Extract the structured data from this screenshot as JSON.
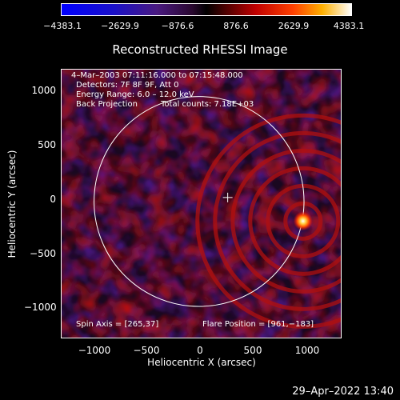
{
  "colorbar": {
    "ticks": [
      "−4383.1",
      "−2629.9",
      "−876.6",
      "876.6",
      "2629.9",
      "4383.1"
    ],
    "min": -4383.1,
    "max": 4383.1
  },
  "title": "Reconstructed RHESSI Image",
  "info": {
    "time_range": "4–Mar–2003 07:11:16.000 to 07:15:48.000",
    "detectors": "Detectors: 7F 8F 9F, Att 0",
    "energy": "Energy Range: 6.0 – 12.0 keV",
    "method": "Back Projection",
    "counts": "Total counts: 7.18E+03"
  },
  "axes": {
    "xlabel": "Heliocentric X (arcsec)",
    "ylabel": "Heliocentric Y (arcsec)",
    "xticks": [
      "−1000",
      "−500",
      "0",
      "500",
      "1000"
    ],
    "yticks": [
      "1000",
      "500",
      "0",
      "−500",
      "−1000"
    ],
    "xlim": [
      -1270,
      1310
    ],
    "ylim": [
      -1270,
      1230
    ]
  },
  "annotations": {
    "spin_axis": "Spin Axis = [265,37]",
    "flare_position": "Flare Position = [961,−183]"
  },
  "solar_disk": {
    "center": [
      0,
      0
    ],
    "radius_arcsec": 970
  },
  "spin_axis_marker": [
    265,
    37
  ],
  "flare_source": [
    961,
    -183
  ],
  "footer": {
    "date": "29–Apr–2022 13:40"
  },
  "colors": {
    "background": "#000000",
    "foreground": "#ffffff"
  }
}
